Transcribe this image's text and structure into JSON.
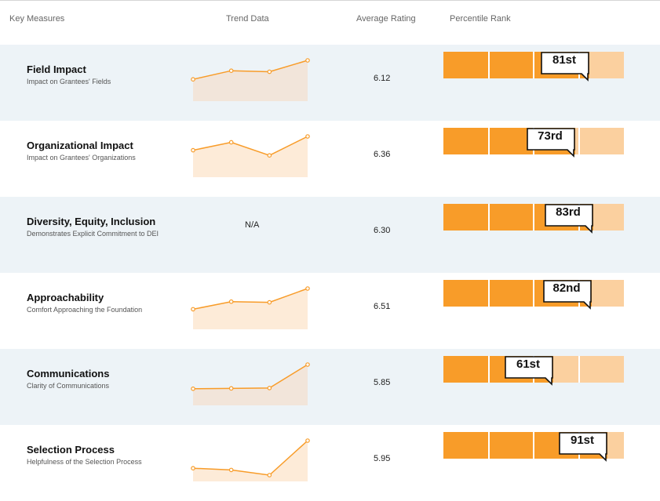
{
  "header": {
    "key_measures": "Key Measures",
    "trend_data": "Trend Data",
    "average_rating": "Average Rating",
    "percentile_rank": "Percentile Rank"
  },
  "colors": {
    "accent": "#f89c29",
    "accent_light": "#fbd09f",
    "row_shade": "#edf3f7"
  },
  "rows": [
    {
      "title": "Field Impact",
      "subtitle": "Impact on Grantees' Fields",
      "trend_values": [
        0.45,
        0.7,
        0.67,
        1.0
      ],
      "trend_fill": "#f2e5da",
      "rating": "6.12",
      "percentile": 81,
      "rank_label": "81st"
    },
    {
      "title": "Organizational Impact",
      "subtitle": "Impact on Grantees' Organizations",
      "trend_values": [
        0.6,
        0.83,
        0.45,
        1.0
      ],
      "trend_fill": "#fdebd8",
      "rating": "6.36",
      "percentile": 73,
      "rank_label": "73rd"
    },
    {
      "title": "Diversity, Equity, Inclusion",
      "subtitle": "Demonstrates Explicit Commitment to DEI",
      "trend_text": "N/A",
      "rating": "6.30",
      "percentile": 83,
      "rank_label": "83rd"
    },
    {
      "title": "Approachability",
      "subtitle": "Comfort Approaching the Foundation",
      "trend_values": [
        0.4,
        0.62,
        0.6,
        1.0
      ],
      "trend_fill": "#fdebd8",
      "rating": "6.51",
      "percentile": 82,
      "rank_label": "82nd"
    },
    {
      "title": "Communications",
      "subtitle": "Clarity of Communications",
      "trend_values": [
        0.3,
        0.31,
        0.32,
        1.0
      ],
      "trend_fill": "#f2e5da",
      "rating": "5.85",
      "percentile": 61,
      "rank_label": "61st"
    },
    {
      "title": "Selection Process",
      "subtitle": "Helpfulness of the Selection Process",
      "trend_values": [
        0.2,
        0.15,
        0.0,
        1.0
      ],
      "trend_fill": "#fdebd8",
      "rating": "5.95",
      "percentile": 91,
      "rank_label": "91st"
    }
  ]
}
